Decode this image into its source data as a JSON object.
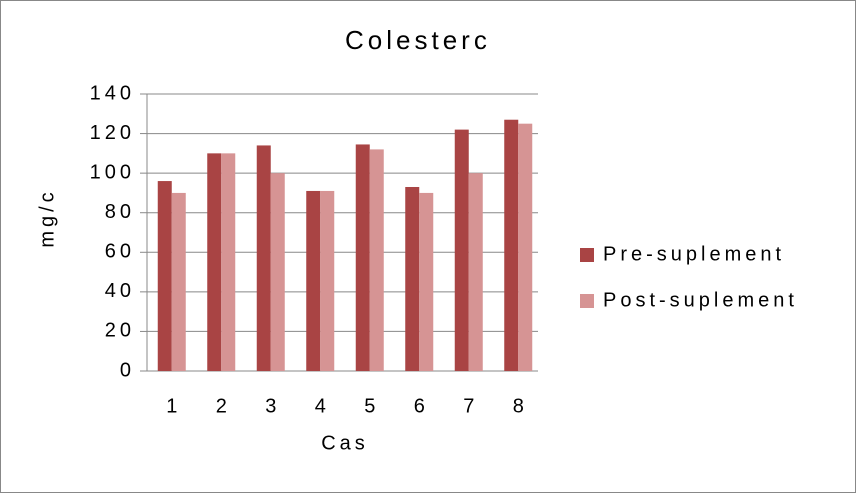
{
  "chart_data": {
    "type": "bar",
    "title": "Colesterc",
    "x_label": "Cas",
    "y_label": "mg/c",
    "categories": [
      "1",
      "2",
      "3",
      "4",
      "5",
      "6",
      "7",
      "8"
    ],
    "series": [
      {
        "name": "Pre-suplement",
        "color": "#a94444",
        "values": [
          96,
          110,
          114,
          91,
          114.5,
          93,
          122,
          127
        ]
      },
      {
        "name": "Post-suplement",
        "color": "#d69494",
        "values": [
          90,
          110,
          100,
          91,
          112,
          90,
          100,
          125
        ]
      }
    ],
    "ylim": [
      0,
      140
    ],
    "yticks": [
      0,
      20,
      40,
      60,
      80,
      100,
      120,
      140
    ],
    "grid": true,
    "legend": "right"
  }
}
